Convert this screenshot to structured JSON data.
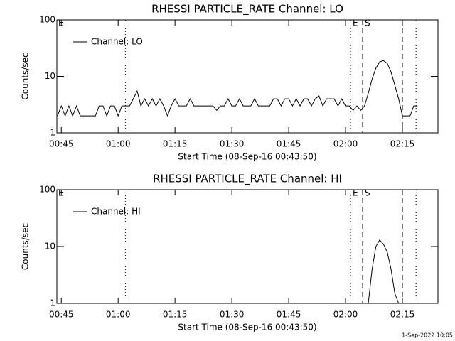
{
  "chart_data": [
    {
      "type": "line",
      "title": "RHESSI PARTICLE_RATE Channel: LO",
      "xlabel": "Start Time (08-Sep-16 00:43:50)",
      "ylabel": "Counts/sec",
      "x": [
        44,
        45,
        46,
        47,
        48,
        49,
        50,
        51,
        52,
        53,
        54,
        55,
        56,
        57,
        58,
        59,
        60,
        61,
        62,
        63,
        64,
        65,
        66,
        67,
        68,
        69,
        70,
        71,
        72,
        73,
        74,
        75,
        76,
        77,
        78,
        79,
        80,
        81,
        82,
        83,
        84,
        85,
        86,
        87,
        88,
        89,
        90,
        91,
        92,
        93,
        94,
        95,
        96,
        97,
        98,
        99,
        100,
        101,
        102,
        103,
        104,
        105,
        106,
        107,
        108,
        109,
        110,
        111,
        112,
        113,
        114,
        115,
        116,
        117,
        118,
        119,
        120,
        121,
        122,
        123,
        124,
        125,
        126,
        127,
        128,
        129,
        130,
        131,
        132,
        133,
        134,
        135,
        136,
        137,
        138,
        139
      ],
      "series": [
        {
          "name": "Channel: LO",
          "color": "#000000",
          "values": [
            2,
            3,
            2,
            3,
            2,
            3,
            2,
            2,
            2,
            2,
            2,
            3,
            3,
            2,
            3,
            3,
            2,
            3,
            3,
            3,
            4,
            5.5,
            3,
            4,
            3,
            4,
            3,
            4,
            3,
            2,
            3,
            4,
            3,
            3,
            3,
            4,
            3,
            3,
            3,
            3,
            3,
            3,
            2.5,
            3,
            3,
            4,
            3,
            3,
            4,
            3,
            3,
            3,
            4,
            3,
            3,
            3,
            3,
            4,
            4,
            3,
            4,
            4,
            3,
            4,
            3,
            4,
            4,
            3,
            4,
            4.5,
            3,
            4,
            4,
            4,
            3,
            4,
            3,
            3,
            2.5,
            3,
            2.5,
            3,
            5,
            9,
            14,
            18,
            19,
            17,
            12,
            7,
            4,
            2,
            2,
            2,
            3,
            3
          ]
        }
      ],
      "xlim": [
        43.83,
        144.38
      ],
      "xticks": [
        {
          "value": 45,
          "label": "00:45"
        },
        {
          "value": 60,
          "label": "01:00"
        },
        {
          "value": 75,
          "label": "01:15"
        },
        {
          "value": 90,
          "label": "01:30"
        },
        {
          "value": 105,
          "label": "01:45"
        },
        {
          "value": 120,
          "label": "02:00"
        },
        {
          "value": 135,
          "label": "02:15"
        }
      ],
      "ylim": [
        1,
        100
      ],
      "yticks": [
        1,
        10,
        100
      ],
      "log_y": true,
      "legend": "upper left",
      "vlines": [
        {
          "x": 61.9,
          "style": "dotted"
        },
        {
          "x": 121.3,
          "style": "dotted"
        },
        {
          "x": 124.5,
          "style": "dashed"
        },
        {
          "x": 135,
          "style": "dashed"
        },
        {
          "x": 138.6,
          "style": "dotted"
        }
      ],
      "annotations": [
        {
          "text": "E",
          "x": 121.3
        },
        {
          "text": "S",
          "x": 124.5
        }
      ],
      "corner_label": "E"
    },
    {
      "type": "line",
      "title": "RHESSI PARTICLE_RATE Channel: HI",
      "xlabel": "Start Time (08-Sep-16 00:43:50)",
      "ylabel": "Counts/sec",
      "x": [
        126,
        127,
        128,
        129,
        130,
        131,
        132,
        133,
        134
      ],
      "series": [
        {
          "name": "Channel: HI",
          "color": "#000000",
          "values": [
            1,
            4,
            10,
            13,
            11,
            8,
            4,
            1.5,
            1
          ]
        }
      ],
      "xlim": [
        43.83,
        144.38
      ],
      "xticks": [
        {
          "value": 45,
          "label": "00:45"
        },
        {
          "value": 60,
          "label": "01:00"
        },
        {
          "value": 75,
          "label": "01:15"
        },
        {
          "value": 90,
          "label": "01:30"
        },
        {
          "value": 105,
          "label": "01:45"
        },
        {
          "value": 120,
          "label": "02:00"
        },
        {
          "value": 135,
          "label": "02:15"
        }
      ],
      "ylim": [
        1,
        100
      ],
      "yticks": [
        1,
        10,
        100
      ],
      "log_y": true,
      "legend": "upper left",
      "vlines": [
        {
          "x": 61.9,
          "style": "dotted"
        },
        {
          "x": 121.3,
          "style": "dotted"
        },
        {
          "x": 124.5,
          "style": "dashed"
        },
        {
          "x": 135,
          "style": "dashed"
        },
        {
          "x": 138.6,
          "style": "dotted"
        }
      ],
      "annotations": [
        {
          "text": "E",
          "x": 121.3
        },
        {
          "text": "S",
          "x": 124.5
        }
      ],
      "corner_label": "E"
    }
  ],
  "footer": "1-Sep-2022 10:05"
}
